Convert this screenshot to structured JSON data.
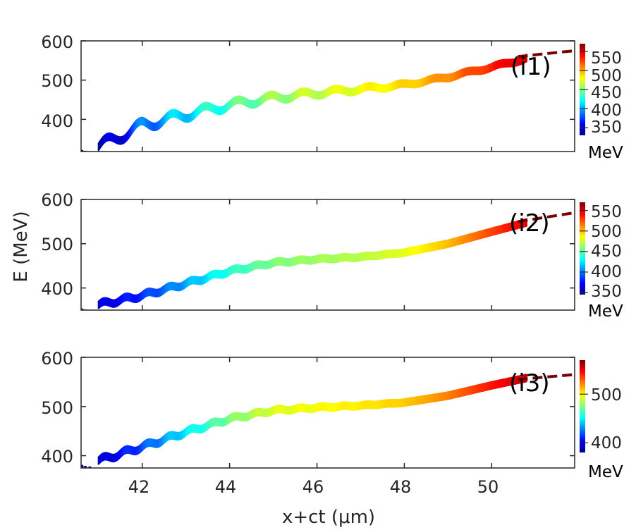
{
  "chart_data": {
    "type": "scatter",
    "xlabel": "x+ct (μm)",
    "ylabel": "E (MeV)",
    "xlim": [
      40.6,
      51.9
    ],
    "x_ticks": [
      42,
      44,
      46,
      48,
      50
    ],
    "x_tick_labels": [
      "42",
      "44",
      "46",
      "48",
      "50"
    ],
    "colormap": "jet",
    "panels": [
      {
        "label": "(i1)",
        "ylim": [
          318,
          600
        ],
        "y_ticks": [
          400,
          500,
          600
        ],
        "y_tick_labels": [
          "400",
          "500",
          "600"
        ],
        "colorbar": {
          "range": [
            330,
            570
          ],
          "ticks": [
            350,
            400,
            450,
            500,
            550
          ],
          "tick_labels": [
            "350",
            "400",
            "450",
            "500",
            "550"
          ],
          "unit": "MeV"
        },
        "base_curve": {
          "x": [
            41.0,
            42.0,
            43.0,
            44.0,
            45.0,
            46.0,
            47.0,
            48.0,
            49.0,
            50.0,
            50.8
          ],
          "y": [
            330,
            385,
            412,
            437,
            455,
            467,
            477,
            488,
            508,
            533,
            555
          ]
        },
        "oscillation": {
          "amplitude": [
            14,
            3
          ],
          "period_um": 0.75
        },
        "dashed_extension": {
          "x": [
            50.6,
            51.9
          ],
          "y": [
            560,
            575
          ]
        }
      },
      {
        "label": "(i2)",
        "ylim": [
          350,
          600
        ],
        "y_ticks": [
          400,
          500,
          600
        ],
        "y_tick_labels": [
          "400",
          "500",
          "600"
        ],
        "colorbar": {
          "range": [
            345,
            570
          ],
          "ticks": [
            350,
            400,
            450,
            500,
            550
          ],
          "tick_labels": [
            "350",
            "400",
            "450",
            "500",
            "550"
          ],
          "unit": "MeV"
        },
        "base_curve": {
          "x": [
            41.0,
            42.0,
            43.0,
            44.0,
            45.0,
            46.0,
            47.0,
            48.0,
            49.0,
            50.0,
            50.8
          ],
          "y": [
            362,
            383,
            410,
            438,
            457,
            465,
            470,
            480,
            500,
            527,
            548
          ]
        },
        "oscillation": {
          "amplitude": [
            5,
            0
          ],
          "period_um": 0.5
        },
        "dashed_extension": {
          "x": [
            50.6,
            51.9
          ],
          "y": [
            550,
            570
          ]
        }
      },
      {
        "label": "(i3)",
        "ylim": [
          375,
          600
        ],
        "y_ticks": [
          400,
          500,
          600
        ],
        "y_tick_labels": [
          "400",
          "500",
          "600"
        ],
        "colorbar": {
          "range": [
            380,
            570
          ],
          "ticks": [
            400,
            500
          ],
          "tick_labels": [
            "400",
            "500"
          ],
          "unit": "MeV"
        },
        "base_curve": {
          "x": [
            41.0,
            42.0,
            43.0,
            44.0,
            45.0,
            46.0,
            47.0,
            48.0,
            49.0,
            50.0,
            50.8
          ],
          "y": [
            390,
            418,
            448,
            475,
            492,
            498,
            502,
            508,
            522,
            543,
            558
          ]
        },
        "oscillation": {
          "amplitude": [
            5,
            0
          ],
          "period_um": 0.5
        },
        "dashed_extension": {
          "x": [
            50.6,
            51.9
          ],
          "y": [
            555,
            565
          ]
        }
      }
    ]
  }
}
